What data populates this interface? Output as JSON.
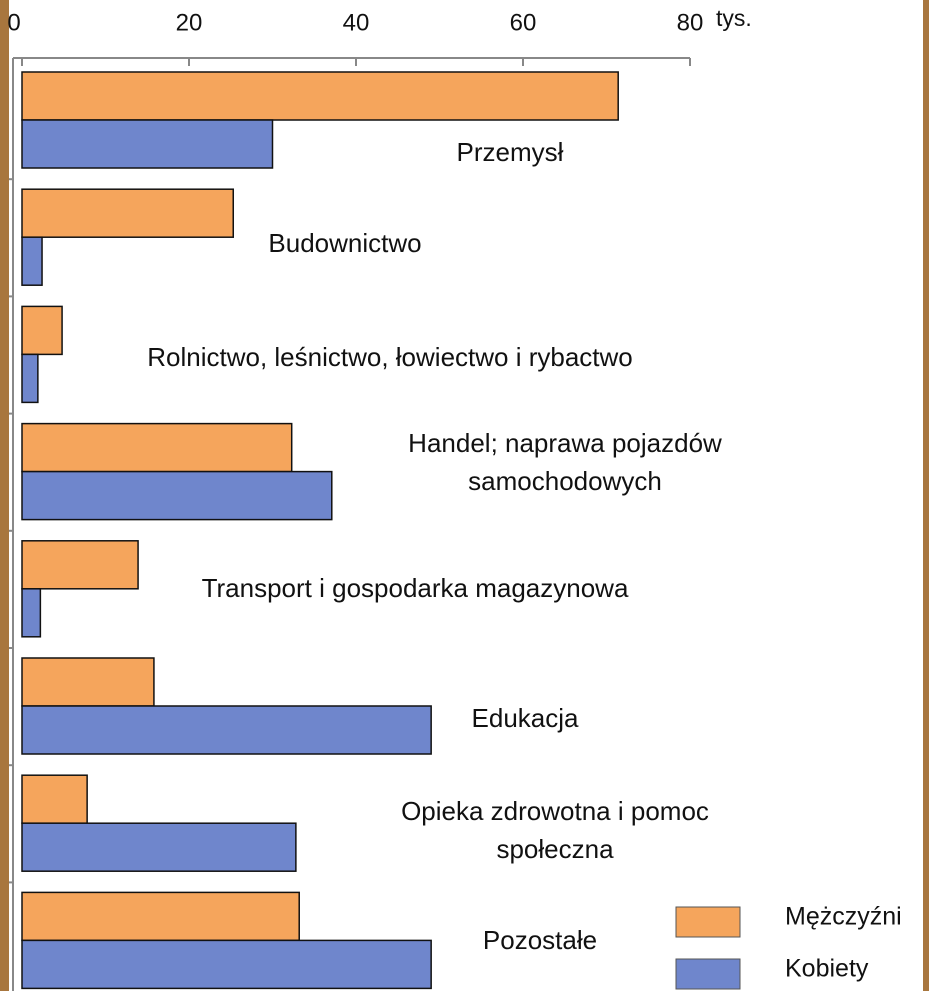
{
  "chart_data": {
    "type": "hbar",
    "x_unit": "tys.",
    "categories": [
      "Przemysł",
      "Budownictwo",
      "Rolnictwo, leśnictwo, łowiectwo i rybactwo",
      "Handel; naprawa pojazdów samochodowych",
      "Transport i gospodarka magazynowa",
      "Edukacja",
      "Opieka zdrowotna i pomoc społeczna",
      "Pozostałe"
    ],
    "series": [
      {
        "name": "Mężczyźni",
        "color": "#f5a55c",
        "values": [
          71.4,
          25.3,
          4.8,
          32.3,
          13.9,
          15.8,
          7.8,
          33.2
        ]
      },
      {
        "name": "Kobiety",
        "color": "#6f86cc",
        "values": [
          30,
          2.4,
          1.9,
          37.1,
          2.2,
          49,
          32.8,
          49
        ]
      }
    ],
    "xlim": [
      0,
      80
    ],
    "xticks": [
      0,
      20,
      40,
      60,
      80
    ]
  }
}
